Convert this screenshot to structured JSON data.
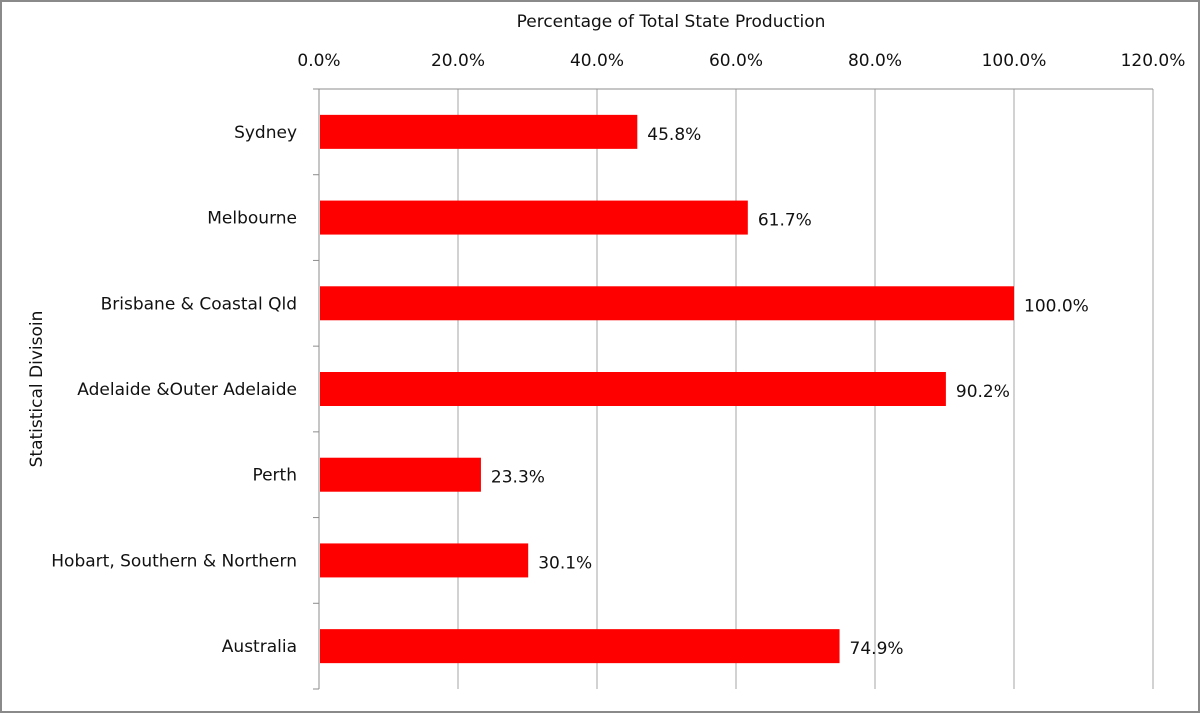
{
  "chart_data": {
    "type": "bar",
    "orientation": "horizontal",
    "title": "",
    "xlabel": "Percentage of Total State Production",
    "ylabel": "Statistical Divisoin",
    "x_axis_position": "top",
    "xlim": [
      0,
      120
    ],
    "xticks": [
      0,
      20,
      40,
      60,
      80,
      100,
      120
    ],
    "xtick_labels": [
      "0.0%",
      "20.0%",
      "40.0%",
      "60.0%",
      "80.0%",
      "100.0%",
      "120.0%"
    ],
    "categories": [
      "Sydney",
      "Melbourne",
      "Brisbane & Coastal Qld",
      "Adelaide &Outer Adelaide",
      "Perth",
      "Hobart, Southern & Northern",
      "Australia"
    ],
    "values": [
      45.8,
      61.7,
      100.0,
      90.2,
      23.3,
      30.1,
      74.9
    ],
    "data_labels": [
      "45.8%",
      "61.7%",
      "100.0%",
      "90.2%",
      "23.3%",
      "30.1%",
      "74.9%"
    ],
    "grid": "vertical",
    "legend": "none",
    "bar_color": "#ff0000",
    "grid_color": "#a6a6a6"
  }
}
